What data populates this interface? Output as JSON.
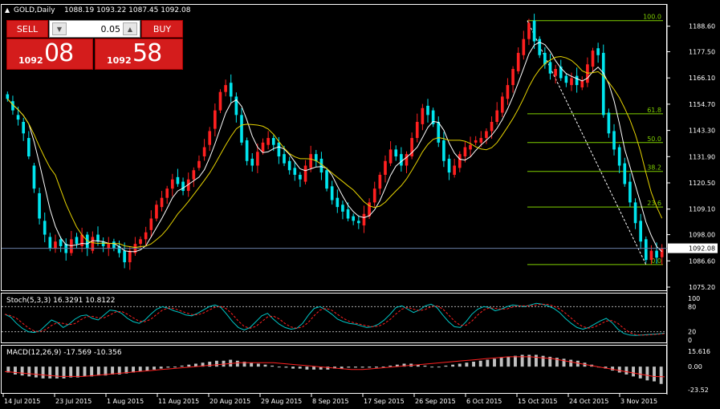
{
  "window": {
    "title": "GOLD,Daily",
    "ohlc": "1088.19 1093.22 1087.45 1092.08"
  },
  "trade_panel": {
    "sell_label": "SELL",
    "buy_label": "BUY",
    "volume": "0.05",
    "bid_prefix": "1092",
    "bid_big": "08",
    "ask_prefix": "1092",
    "ask_big": "58"
  },
  "colors": {
    "background": "#000000",
    "bull_candle": "#ff2020",
    "bear_candle": "#00e5ee",
    "ma_fast": "#ffffff",
    "ma_slow": "#e6d300",
    "fibo": "#7fd000",
    "price_line": "#6a7fa8",
    "macd_hist": "#c0c0c0",
    "macd_signal": "#ff2020",
    "stoch_main": "#00c8c8",
    "stoch_signal": "#ff2020"
  },
  "chart_data": [
    {
      "type": "candlestick",
      "symbol": "GOLD",
      "timeframe": "Daily",
      "ylim": [
        1075.2,
        1193.0
      ],
      "price_ticks": [
        "1188.60",
        "1177.50",
        "1166.10",
        "1154.70",
        "1143.30",
        "1131.90",
        "1120.50",
        "1109.10",
        "1098.00",
        "1086.60",
        "1075.20"
      ],
      "current_price": "1092.08",
      "x_labels": [
        "14 Jul 2015",
        "23 Jul 2015",
        "1 Aug 2015",
        "11 Aug 2015",
        "20 Aug 2015",
        "29 Aug 2015",
        "8 Sep 2015",
        "17 Sep 2015",
        "26 Sep 2015",
        "6 Oct 2015",
        "15 Oct 2015",
        "24 Oct 2015",
        "3 Nov 2015"
      ],
      "closes": [
        1157,
        1152,
        1148,
        1142,
        1132,
        1118,
        1105,
        1098,
        1092,
        1095,
        1093,
        1090,
        1096,
        1094,
        1098,
        1092,
        1097,
        1095,
        1093,
        1094,
        1092,
        1090,
        1086,
        1091,
        1094,
        1096,
        1099,
        1105,
        1111,
        1114,
        1118,
        1122,
        1120,
        1117,
        1122,
        1126,
        1130,
        1136,
        1143,
        1152,
        1160,
        1163,
        1158,
        1150,
        1138,
        1130,
        1128,
        1134,
        1138,
        1140,
        1137,
        1132,
        1129,
        1126,
        1124,
        1122,
        1128,
        1133,
        1130,
        1125,
        1118,
        1113,
        1110,
        1108,
        1105,
        1104,
        1103,
        1107,
        1112,
        1118,
        1124,
        1130,
        1135,
        1132,
        1128,
        1133,
        1140,
        1147,
        1153,
        1150,
        1146,
        1138,
        1130,
        1125,
        1128,
        1133,
        1136,
        1137,
        1139,
        1140,
        1143,
        1147,
        1152,
        1158,
        1163,
        1170,
        1177,
        1183,
        1190,
        1182,
        1176,
        1172,
        1168,
        1170,
        1166,
        1164,
        1166,
        1163,
        1165,
        1172,
        1178,
        1176,
        1150,
        1142,
        1135,
        1128,
        1120,
        1112,
        1103,
        1095,
        1087,
        1091,
        1088,
        1092.08
      ],
      "opens": [
        1159,
        1156,
        1150,
        1147,
        1140,
        1128,
        1116,
        1104,
        1097,
        1092,
        1096,
        1094,
        1090,
        1097,
        1093,
        1098,
        1091,
        1098,
        1095,
        1092,
        1095,
        1093,
        1091,
        1086,
        1090,
        1094,
        1096,
        1100,
        1105,
        1110,
        1114,
        1118,
        1123,
        1121,
        1117,
        1122,
        1127,
        1132,
        1137,
        1144,
        1152,
        1160,
        1164,
        1158,
        1150,
        1139,
        1131,
        1128,
        1134,
        1137,
        1140,
        1138,
        1133,
        1130,
        1127,
        1124,
        1121,
        1127,
        1133,
        1131,
        1126,
        1119,
        1114,
        1111,
        1109,
        1106,
        1104,
        1102,
        1106,
        1112,
        1118,
        1124,
        1129,
        1135,
        1133,
        1128,
        1132,
        1140,
        1146,
        1154,
        1152,
        1147,
        1139,
        1131,
        1124,
        1127,
        1132,
        1135,
        1138,
        1138,
        1140,
        1143,
        1147,
        1151,
        1157,
        1163,
        1169,
        1176,
        1183,
        1191,
        1183,
        1177,
        1173,
        1167,
        1171,
        1167,
        1163,
        1167,
        1162,
        1164,
        1171,
        1179,
        1177,
        1151,
        1143,
        1136,
        1129,
        1121,
        1112,
        1104,
        1096,
        1087,
        1091,
        1088.19
      ],
      "fibonacci": {
        "levels": [
          "100.0",
          "61.8",
          "50.0",
          "38.2",
          "23.6",
          "0.0"
        ],
        "high": 1191.0,
        "low": 1085.0
      }
    },
    {
      "type": "line",
      "name": "Stoch(5,3,3) 16.3291 10.8122",
      "ylim": [
        0,
        100
      ],
      "tick_labels": [
        "100",
        "80",
        "20",
        "0"
      ],
      "main": [
        62,
        55,
        40,
        28,
        20,
        18,
        22,
        35,
        48,
        42,
        30,
        38,
        50,
        58,
        60,
        52,
        48,
        60,
        72,
        70,
        64,
        52,
        44,
        40,
        48,
        62,
        74,
        80,
        76,
        70,
        66,
        60,
        58,
        64,
        72,
        80,
        84,
        78,
        62,
        44,
        30,
        24,
        30,
        44,
        58,
        64,
        50,
        38,
        30,
        26,
        28,
        40,
        60,
        76,
        80,
        72,
        62,
        50,
        44,
        40,
        38,
        34,
        30,
        32,
        38,
        48,
        62,
        78,
        82,
        74,
        66,
        72,
        82,
        86,
        78,
        60,
        44,
        32,
        30,
        44,
        62,
        74,
        80,
        78,
        70,
        74,
        80,
        84,
        82,
        80,
        84,
        88,
        86,
        82,
        76,
        66,
        52,
        40,
        30,
        26,
        30,
        38,
        46,
        52,
        42,
        26,
        16,
        12,
        11,
        12,
        13,
        14,
        15,
        16.3
      ]
    },
    {
      "type": "bar",
      "name": "MACD(12,26,9) -17.569 -10.356",
      "ylim": [
        -23.52,
        15.616
      ],
      "tick_labels": [
        "15.616",
        "0.00",
        "-23.52"
      ],
      "hist": [
        -6,
        -8,
        -9,
        -10,
        -11,
        -12,
        -12,
        -12,
        -12,
        -11,
        -11,
        -10,
        -10,
        -9,
        -9,
        -8,
        -8,
        -7,
        -6,
        -5,
        -4,
        -3,
        -2,
        -1,
        0,
        1,
        2,
        3,
        4,
        5,
        6,
        6,
        7,
        6,
        5,
        4,
        3,
        2,
        1,
        0,
        -1,
        -2,
        -2,
        -3,
        -3,
        -3,
        -3,
        -2,
        -2,
        -1,
        -1,
        -1,
        -1,
        -1,
        0,
        1,
        2,
        3,
        3,
        2,
        1,
        0,
        0,
        1,
        2,
        3,
        4,
        5,
        6,
        7,
        8,
        9,
        10,
        11,
        12,
        12,
        12,
        11,
        10,
        9,
        8,
        7,
        6,
        4,
        2,
        0,
        -2,
        -4,
        -6,
        -8,
        -10,
        -12,
        -14,
        -15,
        -17.6
      ],
      "signal": [
        -5,
        -6,
        -7,
        -8,
        -9,
        -10,
        -10,
        -10,
        -9,
        -8,
        -7,
        -6,
        -5,
        -4,
        -3,
        -2,
        -1,
        0,
        1,
        2,
        3,
        4,
        4,
        4,
        4,
        3,
        2,
        1,
        0,
        -1,
        -2,
        -3,
        -3,
        -2,
        -1,
        0,
        1,
        2,
        3,
        4,
        5,
        6,
        7,
        8,
        9,
        10,
        10,
        10,
        9,
        8,
        6,
        4,
        2,
        0,
        -2,
        -4,
        -6,
        -8,
        -10,
        -10.4
      ]
    }
  ]
}
